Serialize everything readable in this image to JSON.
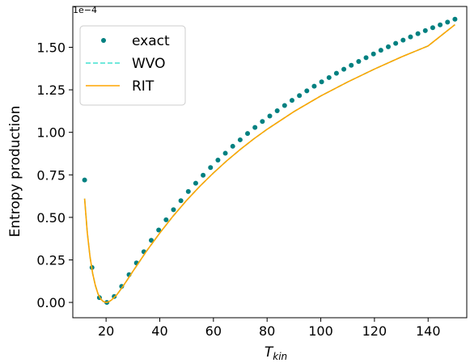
{
  "chart_data": {
    "type": "line",
    "offset_text": "1e−4",
    "xlabel_main": "T",
    "xlabel_sub": "kin",
    "ylabel": "Entropy production",
    "xlim": [
      7.6,
      154.4
    ],
    "ylim": [
      -0.09,
      1.74
    ],
    "x_ticks": [
      20,
      40,
      60,
      80,
      100,
      120,
      140
    ],
    "x_tick_labels": [
      "20",
      "40",
      "60",
      "80",
      "100",
      "120",
      "140"
    ],
    "y_ticks": [
      0.0,
      0.25,
      0.5,
      0.75,
      1.0,
      1.25,
      1.5
    ],
    "y_tick_labels": [
      "0.00",
      "0.25",
      "0.50",
      "0.75",
      "1.00",
      "1.25",
      "1.50"
    ],
    "legend_position": "upper-left",
    "series": [
      {
        "name": "exact",
        "style": "scatter",
        "color": "#008080",
        "x": [
          12,
          14.76,
          17.52,
          20.28,
          23.04,
          25.8,
          28.56,
          31.32,
          34.08,
          36.84,
          39.6,
          42.36,
          45.12,
          47.88,
          50.64,
          53.4,
          56.16,
          58.92,
          61.68,
          64.44,
          67.2,
          69.96,
          72.72,
          75.48,
          78.24,
          81,
          83.76,
          86.52,
          89.28,
          92.04,
          94.8,
          97.56,
          100.32,
          103.08,
          105.84,
          108.6,
          111.36,
          114.12,
          116.88,
          119.64,
          122.4,
          125.16,
          127.92,
          130.68,
          133.44,
          136.2,
          138.96,
          141.72,
          144.48,
          147.24,
          150
        ],
        "y": [
          0.72,
          0.205,
          0.028,
          0.0,
          0.035,
          0.094,
          0.163,
          0.232,
          0.298,
          0.365,
          0.426,
          0.486,
          0.545,
          0.598,
          0.652,
          0.701,
          0.748,
          0.793,
          0.837,
          0.877,
          0.918,
          0.956,
          0.993,
          1.029,
          1.064,
          1.096,
          1.127,
          1.158,
          1.188,
          1.216,
          1.244,
          1.271,
          1.297,
          1.322,
          1.347,
          1.371,
          1.394,
          1.417,
          1.439,
          1.461,
          1.483,
          1.503,
          1.523,
          1.542,
          1.561,
          1.58,
          1.598,
          1.615,
          1.632,
          1.648,
          1.665
        ]
      },
      {
        "name": "WVO",
        "style": "dashed",
        "color": "#40e0d0",
        "x": [
          12,
          13,
          14,
          15,
          16,
          17,
          18,
          19,
          20,
          21,
          22,
          24,
          26,
          28,
          30,
          35,
          40,
          45,
          50,
          55,
          60,
          65,
          70,
          75,
          80,
          90,
          100,
          110,
          120,
          130,
          140,
          150
        ],
        "y": [
          0.61,
          0.41,
          0.27,
          0.17,
          0.1,
          0.05,
          0.02,
          0.005,
          0.0,
          0.004,
          0.014,
          0.045,
          0.088,
          0.135,
          0.183,
          0.3,
          0.408,
          0.508,
          0.6,
          0.684,
          0.761,
          0.833,
          0.899,
          0.961,
          1.018,
          1.122,
          1.214,
          1.296,
          1.372,
          1.443,
          1.508,
          1.633
        ]
      },
      {
        "name": "RIT",
        "style": "solid",
        "color": "#ffa500",
        "x": [
          12,
          13,
          14,
          15,
          16,
          17,
          18,
          19,
          20,
          21,
          22,
          24,
          26,
          28,
          30,
          35,
          40,
          45,
          50,
          55,
          60,
          65,
          70,
          75,
          80,
          90,
          100,
          110,
          120,
          130,
          140,
          150
        ],
        "y": [
          0.61,
          0.41,
          0.27,
          0.17,
          0.1,
          0.05,
          0.02,
          0.005,
          0.0,
          0.004,
          0.014,
          0.045,
          0.088,
          0.135,
          0.183,
          0.3,
          0.408,
          0.508,
          0.6,
          0.684,
          0.761,
          0.833,
          0.899,
          0.961,
          1.018,
          1.122,
          1.214,
          1.296,
          1.372,
          1.443,
          1.508,
          1.633
        ]
      }
    ]
  }
}
